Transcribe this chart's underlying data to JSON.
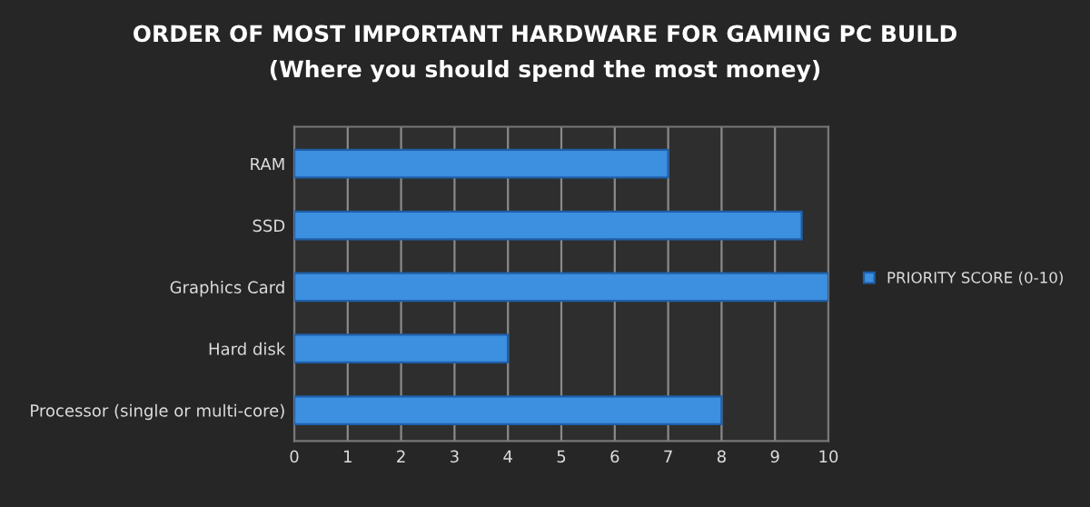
{
  "chart_data": {
    "type": "bar",
    "orientation": "horizontal",
    "title": "ORDER OF MOST IMPORTANT HARDWARE FOR GAMING PC BUILD",
    "subtitle": "(Where you should spend the most money)",
    "categories": [
      "RAM",
      "SSD",
      "Graphics Card",
      "Hard disk",
      "Processor (single or multi-core)"
    ],
    "series": [
      {
        "name": "PRIORITY SCORE (0-10)",
        "color": "#3d8fe0",
        "values": [
          7,
          9.5,
          10,
          4,
          8
        ]
      }
    ],
    "xlim": [
      0,
      10
    ],
    "xticks": [
      0,
      1,
      2,
      3,
      4,
      5,
      6,
      7,
      8,
      9,
      10
    ],
    "grid": "x",
    "legend": "right"
  }
}
